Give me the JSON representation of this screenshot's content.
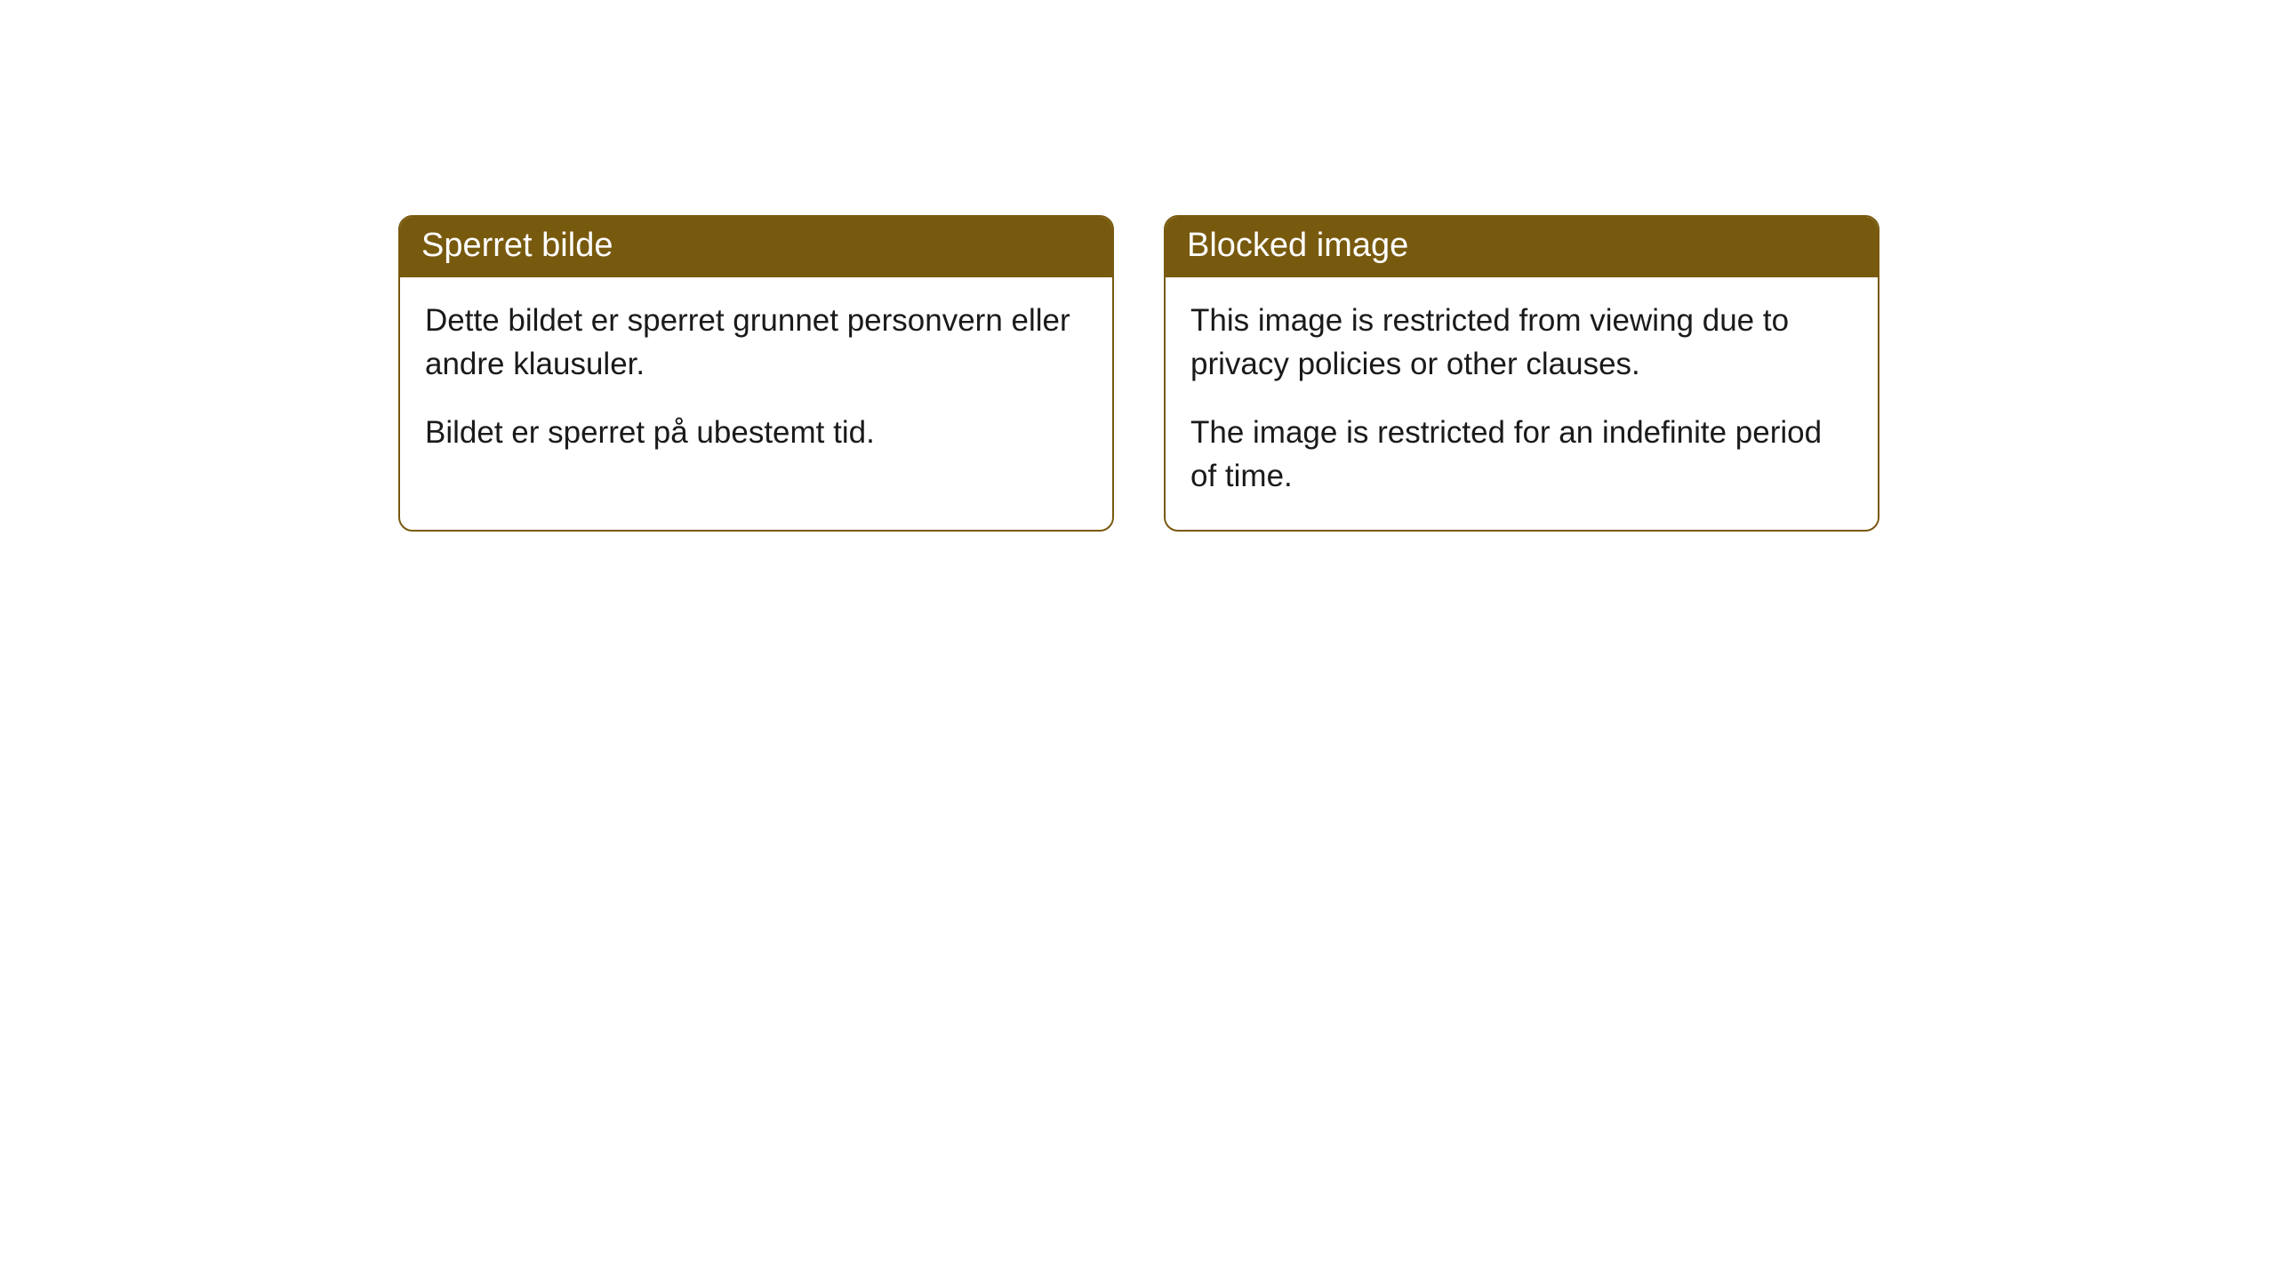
{
  "cards": [
    {
      "title": "Sperret bilde",
      "paragraph1": "Dette bildet er sperret grunnet personvern eller andre klausuler.",
      "paragraph2": "Bildet er sperret på ubestemt tid."
    },
    {
      "title": "Blocked image",
      "paragraph1": "This image is restricted from viewing due to privacy policies or other clauses.",
      "paragraph2": "The image is restricted for an indefinite period of time."
    }
  ],
  "style": {
    "header_bg_color": "#785a0f",
    "header_text_color": "#ffffff",
    "border_color": "#785a0f",
    "body_bg_color": "#ffffff",
    "body_text_color": "#1a1a1a",
    "border_radius": 16,
    "header_fontsize": 38,
    "body_fontsize": 35
  }
}
